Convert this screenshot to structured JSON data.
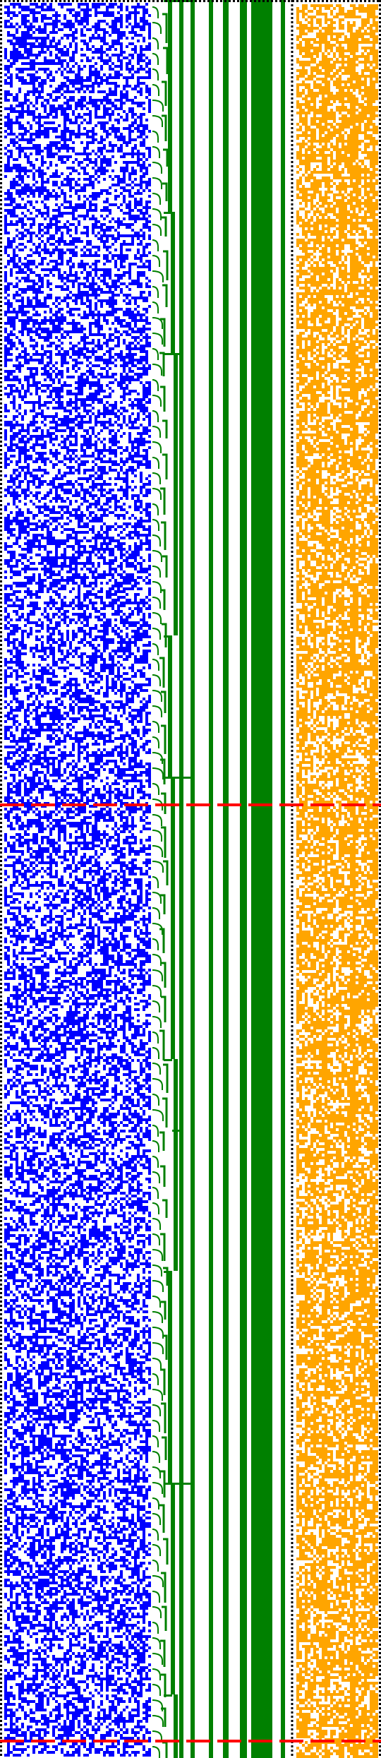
{
  "colors": {
    "background": "#ffffff",
    "blue": "#0000ff",
    "green": "#008000",
    "orange": "#ffa500",
    "red": "#ff0000",
    "dots": "#000000"
  },
  "markers": {
    "red_dashed_lines": 2
  }
}
